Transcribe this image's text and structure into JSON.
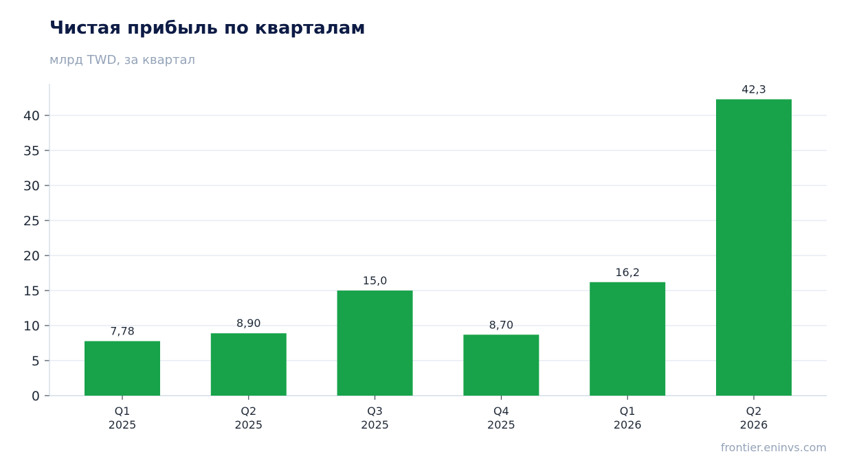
{
  "header": {
    "title": "Чистая прибыль по кварталам",
    "subtitle": "млрд TWD, за квартал"
  },
  "footer": {
    "source": "frontier.eninvs.com"
  },
  "colors": {
    "bar": "#18a34a",
    "grid": "#e2e8f0",
    "axis": "#cbd5e1"
  },
  "chart_data": {
    "type": "bar",
    "title": "Чистая прибыль по кварталам",
    "subtitle": "млрд TWD, за квартал",
    "xlabel": "",
    "ylabel": "",
    "categories": [
      [
        "Q1",
        "2025"
      ],
      [
        "Q2",
        "2025"
      ],
      [
        "Q3",
        "2025"
      ],
      [
        "Q4",
        "2025"
      ],
      [
        "Q1",
        "2026"
      ],
      [
        "Q2",
        "2026"
      ]
    ],
    "values": [
      7.78,
      8.9,
      15.0,
      8.7,
      16.2,
      42.3
    ],
    "value_labels": [
      "7,78",
      "8,90",
      "15,0",
      "8,70",
      "16,2",
      "42,3"
    ],
    "yticks": [
      0,
      5,
      10,
      15,
      20,
      25,
      30,
      35,
      40
    ],
    "ylim": [
      0,
      44.5
    ],
    "grid": true,
    "legend": "none"
  }
}
